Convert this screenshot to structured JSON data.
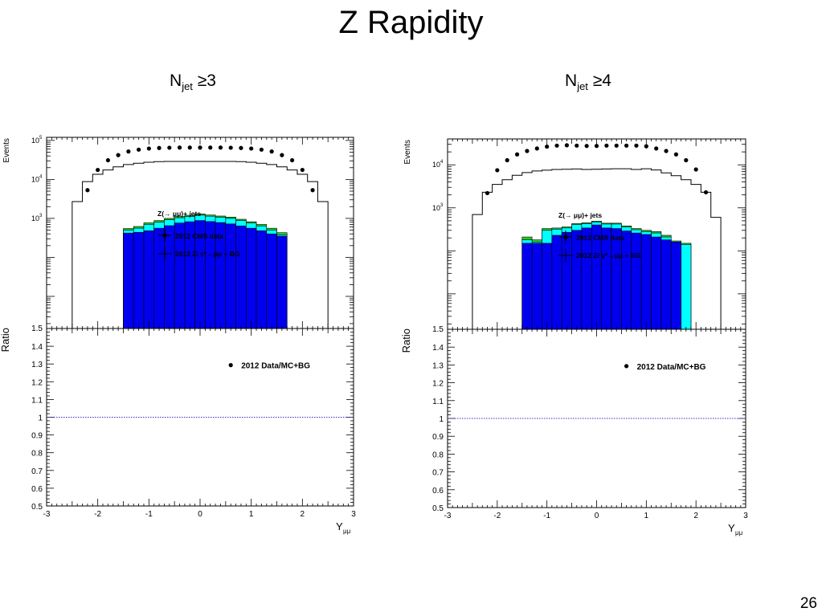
{
  "slide": {
    "title": "Z Rapidity",
    "page_number": "26"
  },
  "colors": {
    "data_marker": "#000000",
    "mc_line": "#000000",
    "stack_blue": "#0000ee",
    "stack_cyan": "#00ffff",
    "stack_green": "#22cc22",
    "stack_outline": "#000000",
    "unity_line": "#3333cc"
  },
  "chart_data": [
    {
      "type": "bar",
      "heading_main": "N",
      "heading_sub": "jet",
      "heading_suffix": " ≥3",
      "xlabel_main": "Y",
      "xlabel_sub": "μμ",
      "ylabel_top": "Events",
      "ylabel_bottom": "Ratio",
      "log_y_top": true,
      "ylim_top": [
        1.5,
        120000
      ],
      "xlim": [
        -3,
        3
      ],
      "ylim_bottom": [
        0.5,
        1.5
      ],
      "x_ticks": [
        "-3",
        "-2",
        "-1",
        "0",
        "1",
        "2",
        "3"
      ],
      "top_y_ticks": [
        {
          "base": "10",
          "exp": "3",
          "value": 1000
        },
        {
          "base": "10",
          "exp": "4",
          "value": 10000
        },
        {
          "base": "10",
          "exp": "5",
          "value": 100000
        }
      ],
      "top_bottom_label": "1.5",
      "bottom_y_ticks": [
        "0.5",
        "0.6",
        "0.7",
        "0.8",
        "0.9",
        "1",
        "1.1",
        "1.2",
        "1.3",
        "1.4",
        "1.5"
      ],
      "legend": {
        "header": "Z(→ μμ)+ jets",
        "data_label": "2012 CMS data",
        "mc_label": "2012 Z/ γ*→μμ + BG",
        "position": "center"
      },
      "ratio_legend": "2012 Data/MC+BG",
      "bin_edges": [
        -2.5,
        -2.3,
        -2.1,
        -1.9,
        -1.7,
        -1.5,
        -1.3,
        -1.1,
        -0.9,
        -0.7,
        -0.5,
        -0.3,
        -0.1,
        0.1,
        0.3,
        0.5,
        0.7,
        0.9,
        1.1,
        1.3,
        1.5,
        1.7,
        1.9,
        2.1,
        2.3,
        2.5
      ],
      "series": [
        {
          "name": "2012 CMS data",
          "kind": "data",
          "values": [
            null,
            5300,
            17500,
            31000,
            42000,
            52000,
            58000,
            62000,
            64000,
            65000,
            65500,
            65500,
            65500,
            65500,
            65500,
            65000,
            64000,
            62000,
            58000,
            52000,
            42000,
            31000,
            17500,
            5300,
            null
          ]
        },
        {
          "name": "2012 Z/ γ*→μμ + BG",
          "kind": "mc",
          "values": [
            2700,
            8800,
            13500,
            17500,
            21000,
            24000,
            26000,
            27500,
            28500,
            29000,
            29000,
            29000,
            29000,
            29000,
            29000,
            29000,
            28500,
            27500,
            26000,
            24000,
            21000,
            17500,
            13500,
            8800,
            2700
          ]
        },
        {
          "name": "",
          "kind": "stack-green",
          "values": [
            null,
            null,
            null,
            null,
            null,
            550,
            620,
            770,
            880,
            1000,
            1120,
            1200,
            1300,
            1220,
            1150,
            1080,
            950,
            820,
            700,
            560,
            430,
            null,
            null,
            null,
            null
          ]
        },
        {
          "name": "",
          "kind": "stack-cyan",
          "values": [
            null,
            null,
            null,
            null,
            null,
            500,
            560,
            700,
            800,
            920,
            1040,
            1120,
            1210,
            1140,
            1070,
            1000,
            880,
            760,
            640,
            500,
            380,
            null,
            null,
            null,
            null
          ]
        },
        {
          "name": "",
          "kind": "stack-blue",
          "values": [
            null,
            null,
            null,
            null,
            null,
            420,
            440,
            480,
            560,
            650,
            760,
            820,
            880,
            830,
            780,
            720,
            640,
            560,
            480,
            400,
            350,
            null,
            null,
            null,
            null
          ]
        }
      ],
      "ratio_line": 1.0
    },
    {
      "type": "bar",
      "heading_main": "N",
      "heading_sub": "jet",
      "heading_suffix": " ≥4",
      "xlabel_main": "Y",
      "xlabel_sub": "μμ",
      "ylabel_top": "Events",
      "ylabel_bottom": "Ratio",
      "log_y_top": true,
      "ylim_top": [
        1.5,
        40000
      ],
      "xlim": [
        -3,
        3
      ],
      "ylim_bottom": [
        0.5,
        1.5
      ],
      "x_ticks": [
        "-3",
        "-2",
        "-1",
        "0",
        "1",
        "2",
        "3"
      ],
      "top_y_ticks": [
        {
          "base": "10",
          "exp": "3",
          "value": 1000
        },
        {
          "base": "10",
          "exp": "4",
          "value": 10000
        }
      ],
      "top_bottom_label": "1.5",
      "bottom_y_ticks": [
        "0.5",
        "0.6",
        "0.7",
        "0.8",
        "0.9",
        "1",
        "1.1",
        "1.2",
        "1.3",
        "1.4",
        "1.5"
      ],
      "legend": {
        "header": "Z(→ μμ)+ jets",
        "data_label": "2012 CMS data",
        "mc_label": "2012 Z/ γ*→μμ + BG",
        "position": "center"
      },
      "ratio_legend": "2012 Data/MC+BG",
      "bin_edges": [
        -2.5,
        -2.3,
        -2.1,
        -1.9,
        -1.7,
        -1.5,
        -1.3,
        -1.1,
        -0.9,
        -0.7,
        -0.5,
        -0.3,
        -0.1,
        0.1,
        0.3,
        0.5,
        0.7,
        0.9,
        1.1,
        1.3,
        1.5,
        1.7,
        1.9,
        2.1,
        2.3,
        2.5
      ],
      "series": [
        {
          "name": "2012 CMS data",
          "kind": "data",
          "values": [
            null,
            2200,
            7500,
            12800,
            17500,
            21000,
            24000,
            26500,
            28000,
            28500,
            28000,
            27500,
            27500,
            28000,
            28000,
            28000,
            28000,
            27000,
            24000,
            21000,
            17500,
            12800,
            7800,
            2300,
            null
          ]
        },
        {
          "name": "2012 Z/ γ*→μμ + BG",
          "kind": "mc",
          "values": [
            700,
            2300,
            3500,
            4500,
            5700,
            6600,
            7200,
            7500,
            7800,
            7900,
            8000,
            7800,
            7900,
            8000,
            8100,
            8100,
            7800,
            8100,
            7600,
            6500,
            5600,
            4500,
            3500,
            2300,
            600
          ]
        },
        {
          "name": "",
          "kind": "stack-green",
          "values": [
            null,
            null,
            null,
            null,
            null,
            210,
            180,
            330,
            340,
            360,
            430,
            450,
            490,
            440,
            440,
            380,
            330,
            300,
            280,
            230,
            170,
            150,
            null,
            null,
            null
          ]
        },
        {
          "name": "",
          "kind": "stack-cyan",
          "values": [
            null,
            null,
            null,
            null,
            null,
            180,
            160,
            300,
            320,
            340,
            410,
            430,
            470,
            420,
            420,
            360,
            310,
            280,
            260,
            210,
            160,
            140,
            null,
            null,
            null
          ]
        },
        {
          "name": "",
          "kind": "stack-blue",
          "values": [
            null,
            null,
            null,
            null,
            null,
            150,
            150,
            150,
            230,
            270,
            300,
            340,
            400,
            340,
            330,
            290,
            260,
            240,
            210,
            180,
            160,
            null,
            null,
            null,
            null
          ]
        }
      ],
      "ratio_line": 1.0
    }
  ]
}
